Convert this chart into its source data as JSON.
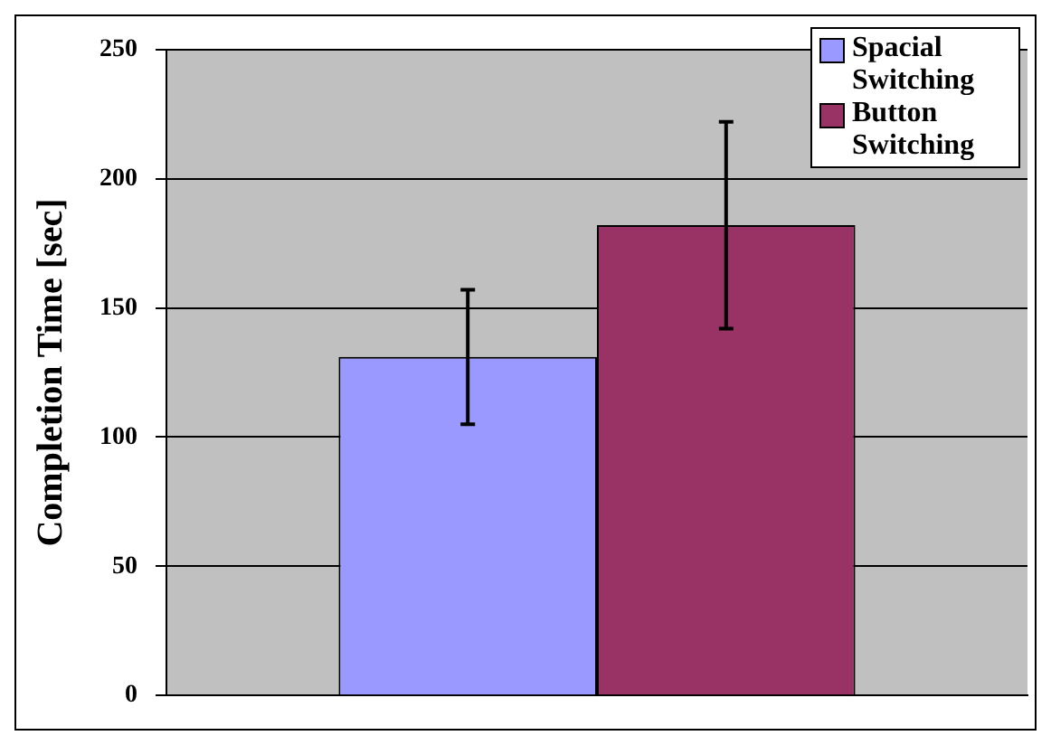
{
  "chart_data": {
    "type": "bar",
    "ylabel": "Completion Time [sec]",
    "categories": [
      null
    ],
    "series": [
      {
        "name": "Spacial Switching",
        "color": "#9999ff",
        "values": [
          131
        ],
        "errors": [
          [
            105,
            157
          ]
        ]
      },
      {
        "name": "Button Switching",
        "color": "#993366",
        "values": [
          182
        ],
        "errors": [
          [
            142,
            222
          ]
        ]
      }
    ],
    "ylim": [
      0,
      250
    ],
    "yticks": [
      0,
      50,
      100,
      150,
      200,
      250
    ],
    "grid": "y",
    "legend": "top right"
  }
}
